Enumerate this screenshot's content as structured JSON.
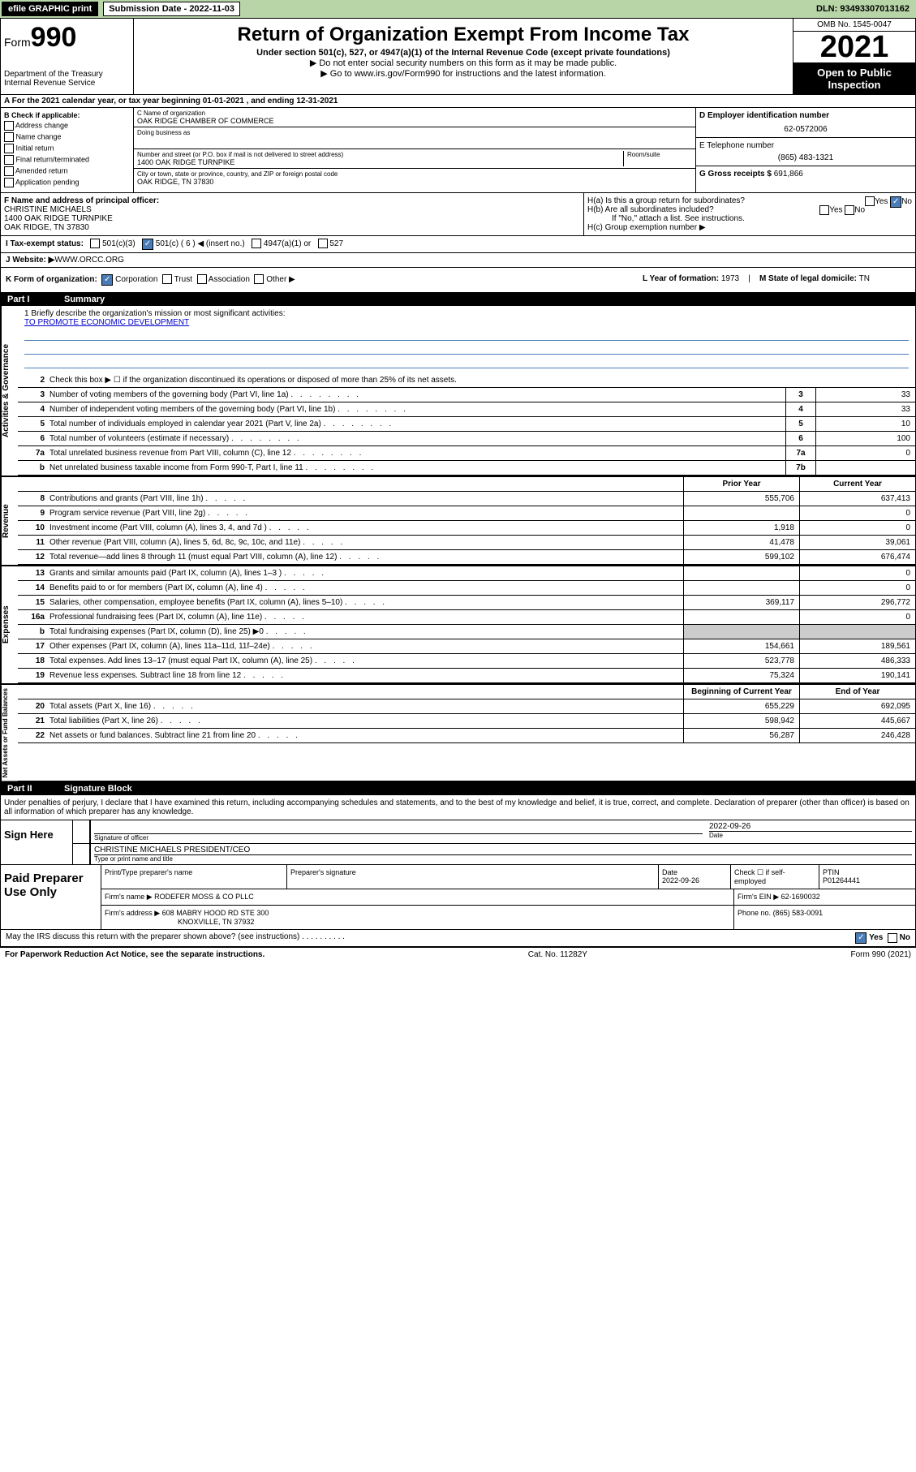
{
  "topbar": {
    "efile": "efile GRAPHIC print",
    "sub_label": "Submission Date - 2022-11-03",
    "dln": "DLN: 93493307013162"
  },
  "header": {
    "form_prefix": "Form",
    "form_num": "990",
    "title": "Return of Organization Exempt From Income Tax",
    "sub1": "Under section 501(c), 527, or 4947(a)(1) of the Internal Revenue Code (except private foundations)",
    "sub2": "▶ Do not enter social security numbers on this form as it may be made public.",
    "sub3": "▶ Go to www.irs.gov/Form990 for instructions and the latest information.",
    "dept": "Department of the Treasury\nInternal Revenue Service",
    "omb": "OMB No. 1545-0047",
    "year": "2021",
    "open": "Open to Public Inspection"
  },
  "line_a": "A For the 2021 calendar year, or tax year beginning 01-01-2021   , and ending 12-31-2021",
  "box_b": {
    "title": "B Check if applicable:",
    "opts": [
      "Address change",
      "Name change",
      "Initial return",
      "Final return/terminated",
      "Amended return",
      "Application pending"
    ]
  },
  "box_c": {
    "name_label": "C Name of organization",
    "name": "OAK RIDGE CHAMBER OF COMMERCE",
    "dba": "Doing business as",
    "addr_label": "Number and street (or P.O. box if mail is not delivered to street address)",
    "addr": "1400 OAK RIDGE TURNPIKE",
    "room": "Room/suite",
    "city_label": "City or town, state or province, country, and ZIP or foreign postal code",
    "city": "OAK RIDGE, TN  37830"
  },
  "box_d": {
    "label": "D Employer identification number",
    "val": "62-0572006"
  },
  "box_e": {
    "label": "E Telephone number",
    "val": "(865) 483-1321"
  },
  "box_g": {
    "label": "G Gross receipts $",
    "val": "691,866"
  },
  "box_f": {
    "label": "F Name and address of principal officer:",
    "name": "CHRISTINE MICHAELS",
    "addr": "1400 OAK RIDGE TURNPIKE",
    "city": "OAK RIDGE, TN  37830"
  },
  "box_h": {
    "ha": "H(a)  Is this a group return for subordinates?",
    "hb": "H(b)  Are all subordinates included?",
    "hb2": "If \"No,\" attach a list. See instructions.",
    "hc": "H(c)  Group exemption number ▶",
    "yes": "Yes",
    "no": "No"
  },
  "box_i": {
    "label": "I    Tax-exempt status:",
    "o1": "501(c)(3)",
    "o2": "501(c) ( 6 ) ◀ (insert no.)",
    "o3": "4947(a)(1) or",
    "o4": "527"
  },
  "box_j": {
    "label": "J   Website: ▶",
    "val": " WWW.ORCC.ORG"
  },
  "box_k": {
    "label": "K Form of organization:",
    "o1": "Corporation",
    "o2": "Trust",
    "o3": "Association",
    "o4": "Other ▶"
  },
  "box_l": {
    "label": "L Year of formation:",
    "val": "1973"
  },
  "box_m": {
    "label": "M State of legal domicile:",
    "val": "TN"
  },
  "part1": {
    "num": "Part I",
    "title": "Summary"
  },
  "mission": {
    "q": "1   Briefly describe the organization's mission or most significant activities:",
    "a": "TO PROMOTE ECONOMIC DEVELOPMENT"
  },
  "governance_rows": [
    {
      "n": "2",
      "t": "Check this box ▶ ☐  if the organization discontinued its operations or disposed of more than 25% of its net assets."
    },
    {
      "n": "3",
      "t": "Number of voting members of the governing body (Part VI, line 1a)",
      "box": "3",
      "v": "33"
    },
    {
      "n": "4",
      "t": "Number of independent voting members of the governing body (Part VI, line 1b)",
      "box": "4",
      "v": "33"
    },
    {
      "n": "5",
      "t": "Total number of individuals employed in calendar year 2021 (Part V, line 2a)",
      "box": "5",
      "v": "10"
    },
    {
      "n": "6",
      "t": "Total number of volunteers (estimate if necessary)",
      "box": "6",
      "v": "100"
    },
    {
      "n": "7a",
      "t": "Total unrelated business revenue from Part VIII, column (C), line 12",
      "box": "7a",
      "v": "0"
    },
    {
      "n": "b",
      "t": "Net unrelated business taxable income from Form 990-T, Part I, line 11",
      "box": "7b",
      "v": ""
    }
  ],
  "col_headers": {
    "prior": "Prior Year",
    "current": "Current Year"
  },
  "revenue_rows": [
    {
      "n": "8",
      "t": "Contributions and grants (Part VIII, line 1h)",
      "p": "555,706",
      "c": "637,413"
    },
    {
      "n": "9",
      "t": "Program service revenue (Part VIII, line 2g)",
      "p": "",
      "c": "0"
    },
    {
      "n": "10",
      "t": "Investment income (Part VIII, column (A), lines 3, 4, and 7d )",
      "p": "1,918",
      "c": "0"
    },
    {
      "n": "11",
      "t": "Other revenue (Part VIII, column (A), lines 5, 6d, 8c, 9c, 10c, and 11e)",
      "p": "41,478",
      "c": "39,061"
    },
    {
      "n": "12",
      "t": "Total revenue—add lines 8 through 11 (must equal Part VIII, column (A), line 12)",
      "p": "599,102",
      "c": "676,474"
    }
  ],
  "expense_rows": [
    {
      "n": "13",
      "t": "Grants and similar amounts paid (Part IX, column (A), lines 1–3 )",
      "p": "",
      "c": "0"
    },
    {
      "n": "14",
      "t": "Benefits paid to or for members (Part IX, column (A), line 4)",
      "p": "",
      "c": "0"
    },
    {
      "n": "15",
      "t": "Salaries, other compensation, employee benefits (Part IX, column (A), lines 5–10)",
      "p": "369,117",
      "c": "296,772"
    },
    {
      "n": "16a",
      "t": "Professional fundraising fees (Part IX, column (A), line 11e)",
      "p": "",
      "c": "0"
    },
    {
      "n": "b",
      "t": "Total fundraising expenses (Part IX, column (D), line 25) ▶0",
      "p": "GRAY",
      "c": "GRAY"
    },
    {
      "n": "17",
      "t": "Other expenses (Part IX, column (A), lines 11a–11d, 11f–24e)",
      "p": "154,661",
      "c": "189,561"
    },
    {
      "n": "18",
      "t": "Total expenses. Add lines 13–17 (must equal Part IX, column (A), line 25)",
      "p": "523,778",
      "c": "486,333"
    },
    {
      "n": "19",
      "t": "Revenue less expenses. Subtract line 18 from line 12",
      "p": "75,324",
      "c": "190,141"
    }
  ],
  "net_headers": {
    "begin": "Beginning of Current Year",
    "end": "End of Year"
  },
  "net_rows": [
    {
      "n": "20",
      "t": "Total assets (Part X, line 16)",
      "p": "655,229",
      "c": "692,095"
    },
    {
      "n": "21",
      "t": "Total liabilities (Part X, line 26)",
      "p": "598,942",
      "c": "445,667"
    },
    {
      "n": "22",
      "t": "Net assets or fund balances. Subtract line 21 from line 20",
      "p": "56,287",
      "c": "246,428"
    }
  ],
  "part2": {
    "num": "Part II",
    "title": "Signature Block"
  },
  "sig_text": "Under penalties of perjury, I declare that I have examined this return, including accompanying schedules and statements, and to the best of my knowledge and belief, it is true, correct, and complete. Declaration of preparer (other than officer) is based on all information of which preparer has any knowledge.",
  "sign": {
    "label": "Sign Here",
    "sig_of": "Signature of officer",
    "date": "2022-09-26",
    "date_label": "Date",
    "name": "CHRISTINE MICHAELS PRESIDENT/CEO",
    "name_label": "Type or print name and title"
  },
  "preparer": {
    "label": "Paid Preparer Use Only",
    "h1": "Print/Type preparer's name",
    "h2": "Preparer's signature",
    "h3": "Date",
    "h3v": "2022-09-26",
    "h4": "Check ☐ if self-employed",
    "h5": "PTIN",
    "h5v": "P01264441",
    "firm_name_l": "Firm's name    ▶",
    "firm_name": "RODEFER MOSS & CO PLLC",
    "firm_ein_l": "Firm's EIN ▶",
    "firm_ein": "62-1690032",
    "firm_addr_l": "Firm's address ▶",
    "firm_addr": "608 MABRY HOOD RD STE 300",
    "firm_city": "KNOXVILLE, TN  37932",
    "phone_l": "Phone no.",
    "phone": "(865) 583-0091"
  },
  "discuss": "May the IRS discuss this return with the preparer shown above? (see instructions)",
  "footer": {
    "left": "For Paperwork Reduction Act Notice, see the separate instructions.",
    "mid": "Cat. No. 11282Y",
    "right": "Form 990 (2021)"
  },
  "labels": {
    "vert_gov": "Activities & Governance",
    "vert_rev": "Revenue",
    "vert_exp": "Expenses",
    "vert_net": "Net Assets or Fund Balances"
  }
}
